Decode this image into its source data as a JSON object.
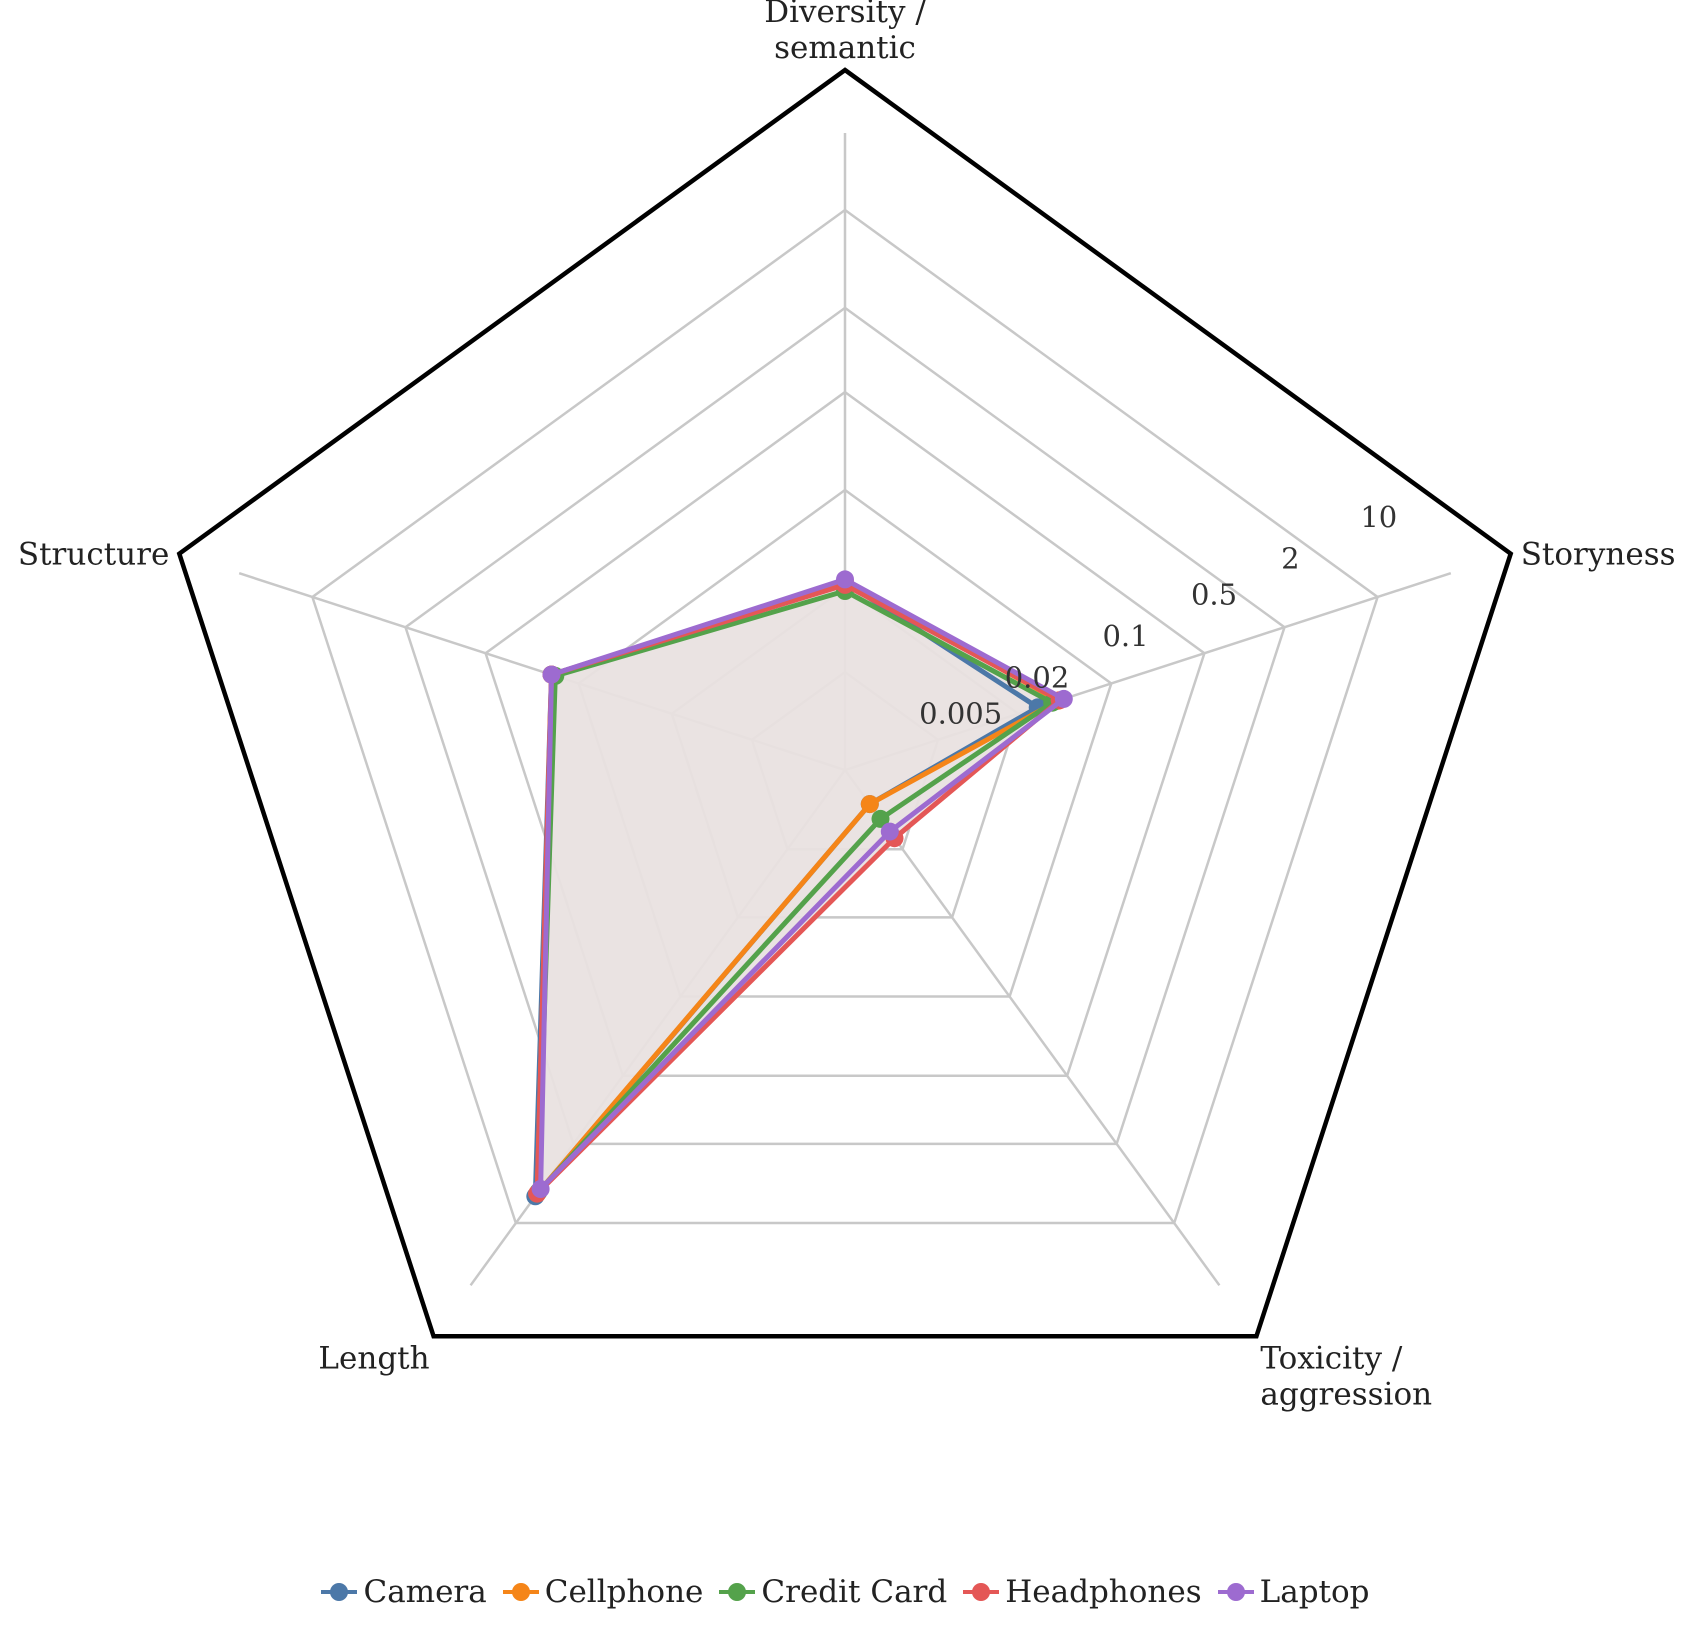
{
  "chart_data": {
    "type": "radar",
    "axes": [
      {
        "key": "diversity",
        "label": [
          "Diversity /",
          "semantic"
        ]
      },
      {
        "key": "storyness",
        "label": [
          "Storyness"
        ]
      },
      {
        "key": "toxicity",
        "label": [
          "Toxicity /",
          "aggression"
        ]
      },
      {
        "key": "length",
        "label": [
          "Length"
        ]
      },
      {
        "key": "structure",
        "label": [
          "Structure"
        ]
      }
    ],
    "radial_scale": "log",
    "radial_range": [
      0.001,
      100
    ],
    "ticks": [
      {
        "value": 0.005,
        "label": "0.005"
      },
      {
        "value": 0.02,
        "label": "0.02"
      },
      {
        "value": 0.1,
        "label": "0.1"
      },
      {
        "value": 0.5,
        "label": "0.5"
      },
      {
        "value": 2,
        "label": "2"
      },
      {
        "value": 10,
        "label": "10"
      }
    ],
    "grid": true,
    "legend_position": "bottom",
    "fill_color": "#e9e1e0",
    "series": [
      {
        "name": "Camera",
        "color": "#4c78a8",
        "values": [
          0.022,
          0.028,
          0.002,
          5.8,
          0.16
        ]
      },
      {
        "name": "Cellphone",
        "color": "#f58518",
        "values": [
          0.022,
          0.04,
          0.002,
          5.5,
          0.16
        ]
      },
      {
        "name": "Credit Card",
        "color": "#54a24b",
        "values": [
          0.019,
          0.036,
          0.0027,
          5.3,
          0.15
        ]
      },
      {
        "name": "Headphones",
        "color": "#e45756",
        "values": [
          0.021,
          0.041,
          0.004,
          5.5,
          0.16
        ]
      },
      {
        "name": "Laptop",
        "color": "#9d6bd0",
        "values": [
          0.023,
          0.044,
          0.0035,
          5.0,
          0.16
        ]
      }
    ]
  }
}
